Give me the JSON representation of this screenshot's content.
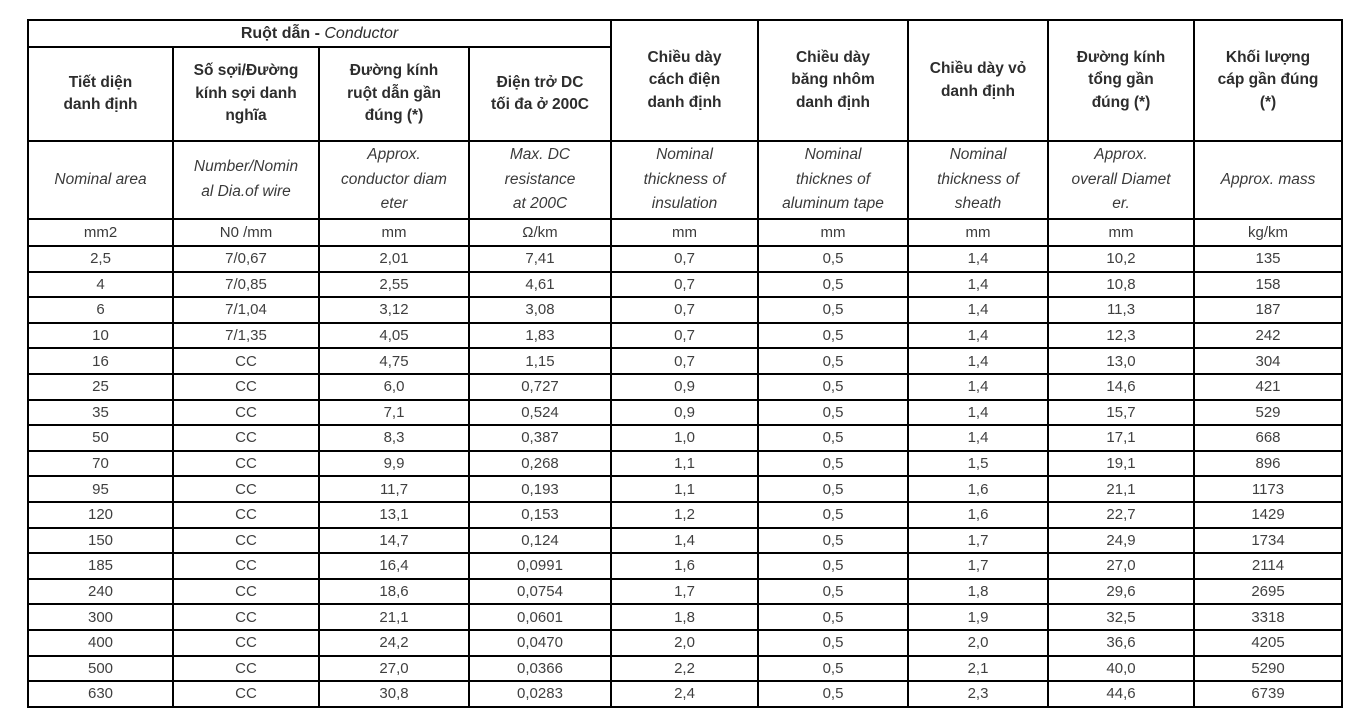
{
  "table": {
    "conductor_group_header": {
      "vi": "Ruột dẫn - ",
      "en": "Conductor"
    },
    "columns": [
      {
        "vi": "Tiết diện\ndanh định",
        "en": "Nominal area",
        "unit": "mm2"
      },
      {
        "vi": "Số sợi/Đường\nkính sợi danh\nnghĩa",
        "en": "Number/Nomin\nal Dia.of wire",
        "unit": "N0 /mm"
      },
      {
        "vi": "Đường kính\nruột dẫn gần\nđúng (*)",
        "en": "Approx.\nconductor diam\neter",
        "unit": "mm"
      },
      {
        "vi": "Điện trở DC\ntối đa ở 200C",
        "en": "Max. DC\nresistance\nat 200C",
        "unit": "Ω/km"
      },
      {
        "vi": "Chiều dày\ncách điện\ndanh định",
        "en": "Nominal\nthickness of\ninsulation",
        "unit": "mm"
      },
      {
        "vi": "Chiều dày\nbăng nhôm\ndanh định",
        "en": "Nominal\nthicknes of\naluminum tape",
        "unit": "mm"
      },
      {
        "vi": "Chiều dày vỏ\ndanh định",
        "en": "Nominal\nthickness of\nsheath",
        "unit": "mm"
      },
      {
        "vi": "Đường kính\ntổng gần\nđúng (*)",
        "en": "Approx.\noverall Diamet\ner.",
        "unit": "mm"
      },
      {
        "vi": "Khối lượng\ncáp gần đúng\n(*)",
        "en": "Approx. mass",
        "unit": "kg/km"
      }
    ],
    "rows": [
      [
        "2,5",
        "7/0,67",
        "2,01",
        "7,41",
        "0,7",
        "0,5",
        "1,4",
        "10,2",
        "135"
      ],
      [
        "4",
        "7/0,85",
        "2,55",
        "4,61",
        "0,7",
        "0,5",
        "1,4",
        "10,8",
        "158"
      ],
      [
        "6",
        "7/1,04",
        "3,12",
        "3,08",
        "0,7",
        "0,5",
        "1,4",
        "11,3",
        "187"
      ],
      [
        "10",
        "7/1,35",
        "4,05",
        "1,83",
        "0,7",
        "0,5",
        "1,4",
        "12,3",
        "242"
      ],
      [
        "16",
        "CC",
        "4,75",
        "1,15",
        "0,7",
        "0,5",
        "1,4",
        "13,0",
        "304"
      ],
      [
        "25",
        "CC",
        "6,0",
        "0,727",
        "0,9",
        "0,5",
        "1,4",
        "14,6",
        "421"
      ],
      [
        "35",
        "CC",
        "7,1",
        "0,524",
        "0,9",
        "0,5",
        "1,4",
        "15,7",
        "529"
      ],
      [
        "50",
        "CC",
        "8,3",
        "0,387",
        "1,0",
        "0,5",
        "1,4",
        "17,1",
        "668"
      ],
      [
        "70",
        "CC",
        "9,9",
        "0,268",
        "1,1",
        "0,5",
        "1,5",
        "19,1",
        "896"
      ],
      [
        "95",
        "CC",
        "11,7",
        "0,193",
        "1,1",
        "0,5",
        "1,6",
        "21,1",
        "1173"
      ],
      [
        "120",
        "CC",
        "13,1",
        "0,153",
        "1,2",
        "0,5",
        "1,6",
        "22,7",
        "1429"
      ],
      [
        "150",
        "CC",
        "14,7",
        "0,124",
        "1,4",
        "0,5",
        "1,7",
        "24,9",
        "1734"
      ],
      [
        "185",
        "CC",
        "16,4",
        "0,0991",
        "1,6",
        "0,5",
        "1,7",
        "27,0",
        "2114"
      ],
      [
        "240",
        "CC",
        "18,6",
        "0,0754",
        "1,7",
        "0,5",
        "1,8",
        "29,6",
        "2695"
      ],
      [
        "300",
        "CC",
        "21,1",
        "0,0601",
        "1,8",
        "0,5",
        "1,9",
        "32,5",
        "3318"
      ],
      [
        "400",
        "CC",
        "24,2",
        "0,0470",
        "2,0",
        "0,5",
        "2,0",
        "36,6",
        "4205"
      ],
      [
        "500",
        "CC",
        "27,0",
        "0,0366",
        "2,2",
        "0,5",
        "2,1",
        "40,0",
        "5290"
      ],
      [
        "630",
        "CC",
        "30,8",
        "0,0283",
        "2,4",
        "0,5",
        "2,3",
        "44,6",
        "6739"
      ]
    ]
  },
  "colors": {
    "border": "#000000",
    "header_text": "#2d2d2d",
    "body_text": "#3f3f3f",
    "background": "#ffffff"
  }
}
